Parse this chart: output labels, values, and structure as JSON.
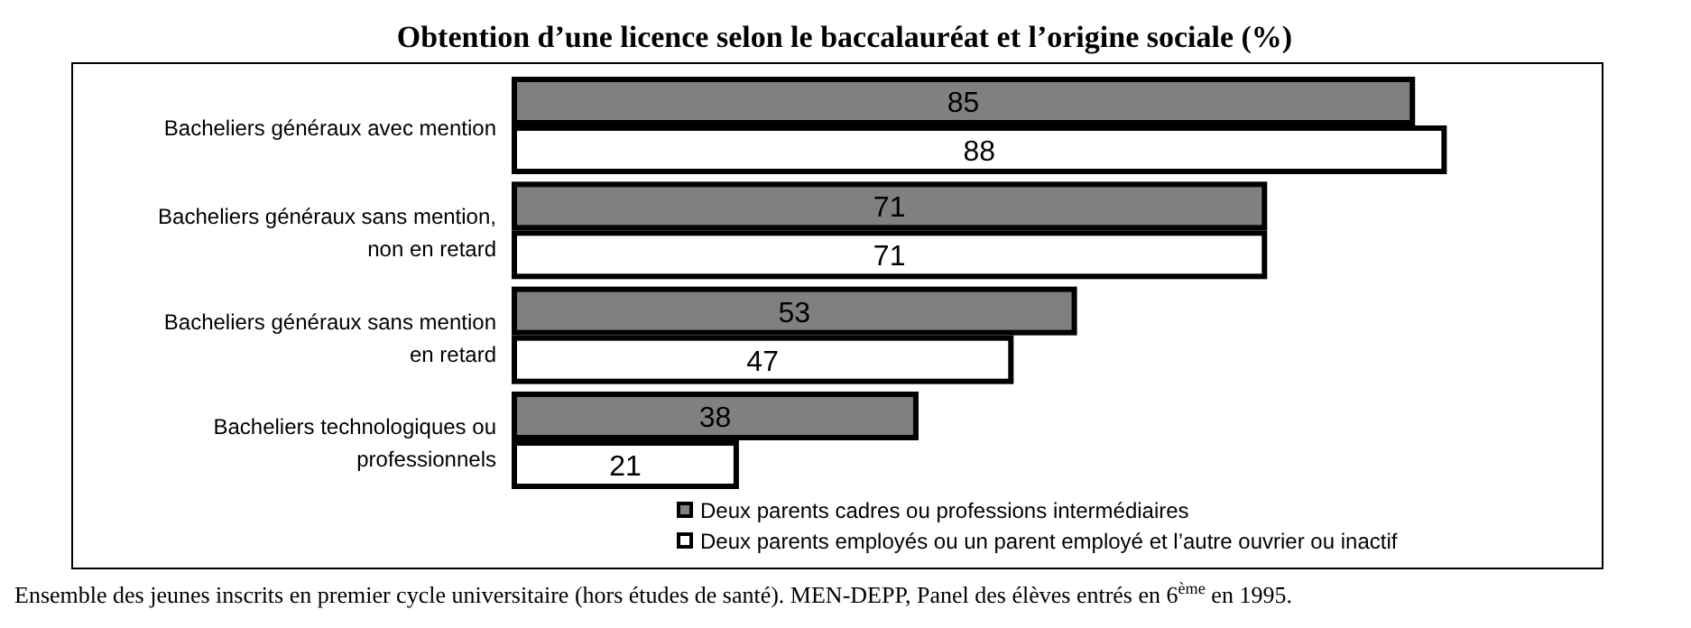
{
  "chart_data": {
    "type": "bar",
    "orientation": "horizontal",
    "title": "Obtention d’une licence selon le baccalauréat et l’origine sociale (%)",
    "categories": [
      "Bacheliers généraux avec mention",
      "Bacheliers généraux sans mention, non en retard",
      "Bacheliers généraux sans mention en retard",
      "Bacheliers technologiques ou professionnels"
    ],
    "series": [
      {
        "name": "Deux parents cadres ou professions intermédiaires",
        "color": "#808080",
        "values": [
          85,
          71,
          53,
          38
        ]
      },
      {
        "name": "Deux parents employés ou un parent employé et l’autre ouvrier ou inactif",
        "color": "#ffffff",
        "values": [
          88,
          71,
          47,
          21
        ]
      }
    ],
    "xlim": [
      0,
      103
    ],
    "data_labels": true,
    "legend": "bottom right",
    "tick_labels": "x",
    "annotations": [
      "Ensemble des jeunes inscrits en premier cycle universitaire (hors études de santé). MEN-DEPP, Panel des élèves entrés en 6$^{ème}$ en 1995."
    ]
  }
}
